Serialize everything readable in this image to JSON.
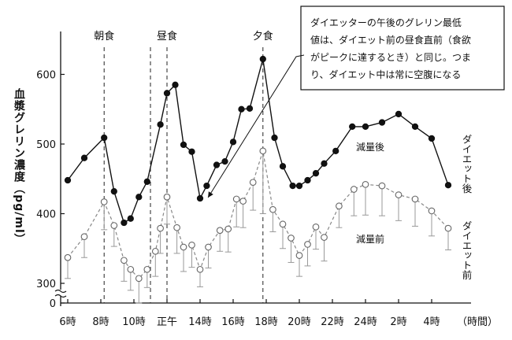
{
  "chart_data": {
    "type": "line",
    "ylabel": "血漿グレリン濃度（pg/ml）",
    "xlabel": "（時間）",
    "ylim": [
      0,
      650
    ],
    "y_ticks": [
      0,
      300,
      400,
      500,
      600
    ],
    "x_tick_labels": [
      "6時",
      "8時",
      "10時",
      "正午",
      "14時",
      "16時",
      "18時",
      "20時",
      "22時",
      "24時",
      "2時",
      "4時"
    ],
    "x_tick_hours": [
      6,
      8,
      10,
      12,
      14,
      16,
      18,
      20,
      22,
      24,
      26,
      28
    ],
    "meals": [
      {
        "label": "朝食",
        "hour": 8.2
      },
      {
        "label": "昼食",
        "hour": 12.0
      },
      {
        "label": "夕食",
        "hour": 17.8
      }
    ],
    "series": [
      {
        "name": "減量後",
        "side_label": "ダイエット後",
        "marker": "filled",
        "points": [
          [
            6.0,
            448
          ],
          [
            7.0,
            480
          ],
          [
            8.2,
            509
          ],
          [
            8.8,
            432
          ],
          [
            9.4,
            387
          ],
          [
            9.8,
            393
          ],
          [
            10.3,
            424
          ],
          [
            10.8,
            446
          ],
          [
            11.6,
            528
          ],
          [
            12.0,
            573
          ],
          [
            12.5,
            585
          ],
          [
            13.0,
            499
          ],
          [
            13.5,
            489
          ],
          [
            14.0,
            422
          ],
          [
            14.4,
            440
          ],
          [
            15.0,
            470
          ],
          [
            15.5,
            475
          ],
          [
            16.0,
            503
          ],
          [
            16.5,
            550
          ],
          [
            17.0,
            551
          ],
          [
            17.8,
            622
          ],
          [
            18.5,
            509
          ],
          [
            19.0,
            468
          ],
          [
            19.6,
            440
          ],
          [
            20.0,
            440
          ],
          [
            20.5,
            448
          ],
          [
            21.0,
            458
          ],
          [
            21.5,
            472
          ],
          [
            22.2,
            490
          ],
          [
            23.2,
            525
          ],
          [
            24.0,
            525
          ],
          [
            25.0,
            531
          ],
          [
            26.0,
            543
          ],
          [
            27.0,
            525
          ],
          [
            28.0,
            508
          ],
          [
            29.0,
            441
          ]
        ]
      },
      {
        "name": "減量前",
        "side_label": "ダイエット前",
        "marker": "open",
        "points": [
          [
            6.0,
            337
          ],
          [
            7.0,
            367
          ],
          [
            8.2,
            417
          ],
          [
            8.8,
            383
          ],
          [
            9.4,
            333
          ],
          [
            9.8,
            320
          ],
          [
            10.3,
            307
          ],
          [
            10.8,
            320
          ],
          [
            11.3,
            346
          ],
          [
            11.6,
            379
          ],
          [
            12.0,
            424
          ],
          [
            12.6,
            380
          ],
          [
            13.0,
            352
          ],
          [
            13.5,
            355
          ],
          [
            14.0,
            320
          ],
          [
            14.5,
            352
          ],
          [
            15.2,
            376
          ],
          [
            15.7,
            378
          ],
          [
            16.2,
            421
          ],
          [
            16.6,
            418
          ],
          [
            17.2,
            445
          ],
          [
            17.8,
            490
          ],
          [
            18.4,
            406
          ],
          [
            19.0,
            385
          ],
          [
            19.5,
            365
          ],
          [
            20.0,
            340
          ],
          [
            20.5,
            356
          ],
          [
            21.0,
            381
          ],
          [
            21.5,
            366
          ],
          [
            22.4,
            411
          ],
          [
            23.3,
            435
          ],
          [
            24.0,
            442
          ],
          [
            25.0,
            440
          ],
          [
            26.0,
            427
          ],
          [
            27.0,
            421
          ],
          [
            28.0,
            404
          ],
          [
            29.0,
            379
          ]
        ],
        "error_low": [
          307,
          337,
          377,
          353,
          303,
          290,
          0,
          294,
          310,
          343,
          385,
          343,
          317,
          323,
          295,
          322,
          346,
          345,
          381,
          380,
          405,
          400,
          374,
          350,
          330,
          310,
          325,
          349,
          332,
          380,
          397,
          398,
          397,
          390,
          382,
          368,
          348
        ]
      }
    ],
    "annotation": "ダイエッターの午後のグレリン最低値は、ダイエット前の昼食直前（食欲がピークに達するとき）と同じ。つまり、ダイエット中は常に空腹になる",
    "annotation_lines": [
      "ダイエッターの午後のグレリン最低",
      "値は、ダイエット前の昼食直前（食欲",
      "がピークに達するとき）と同じ。つま",
      "り、ダイエット中は常に空腹になる"
    ],
    "annotation_target": {
      "hour": 14.1,
      "value": 422
    },
    "axis_break": true
  }
}
